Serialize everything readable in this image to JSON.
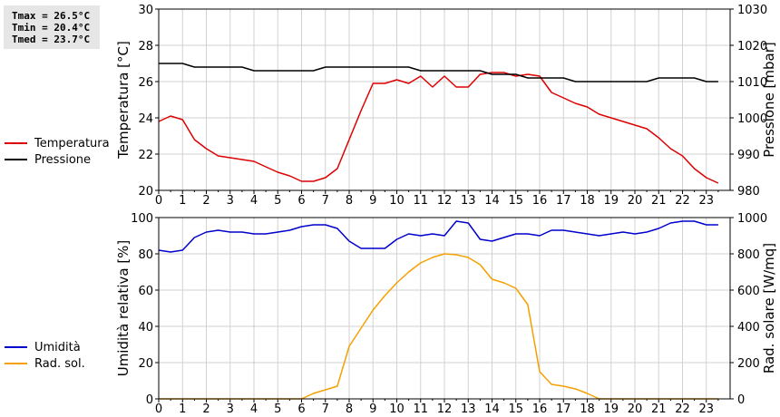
{
  "stats": {
    "tmax": "Tmax = 26.5°C",
    "tmin": "Tmin = 20.4°C",
    "tmed": "Tmed = 23.7°C"
  },
  "colors": {
    "temperature": "#dd0000",
    "pressure": "#000000",
    "humidity": "#0000cc",
    "radiation": "#f5a000",
    "grid": "#d2d2d2"
  },
  "chart_data": [
    {
      "type": "line",
      "x_ticks": [
        "0",
        "1",
        "2",
        "3",
        "4",
        "5",
        "6",
        "7",
        "8",
        "9",
        "10",
        "11",
        "12",
        "13",
        "14",
        "15",
        "16",
        "17",
        "18",
        "19",
        "20",
        "21",
        "22",
        "23"
      ],
      "xlim": [
        0,
        24
      ],
      "ylabel": "Temperatura [°C]",
      "ylim": [
        20,
        30
      ],
      "y_ticks": [
        "20",
        "22",
        "24",
        "26",
        "28",
        "30"
      ],
      "y2label": "Pressione [mbar]",
      "y2lim": [
        980,
        1030
      ],
      "y2_ticks": [
        "980",
        "990",
        "1000",
        "1010",
        "1020",
        "1030"
      ],
      "grid": true,
      "legend_placement": "left",
      "series": [
        {
          "name": "Temperatura",
          "axis": "left",
          "x": [
            0,
            0.5,
            1,
            1.5,
            2,
            2.5,
            3,
            3.5,
            4,
            4.5,
            5,
            5.5,
            6,
            6.5,
            7,
            7.5,
            8,
            8.5,
            9,
            9.5,
            10,
            10.5,
            11,
            11.5,
            12,
            12.5,
            13,
            13.5,
            14,
            14.5,
            15,
            15.5,
            16,
            16.5,
            17,
            17.5,
            18,
            18.5,
            19,
            19.5,
            20,
            20.5,
            21,
            21.5,
            22,
            22.5,
            23,
            23.5
          ],
          "y": [
            23.8,
            24.1,
            23.9,
            22.8,
            22.3,
            21.9,
            21.8,
            21.7,
            21.6,
            21.3,
            21.0,
            20.8,
            20.5,
            20.5,
            20.7,
            21.2,
            22.8,
            24.4,
            25.9,
            25.9,
            26.1,
            25.9,
            26.3,
            25.7,
            26.3,
            25.7,
            25.7,
            26.4,
            26.5,
            26.5,
            26.3,
            26.4,
            26.3,
            25.4,
            25.1,
            24.8,
            24.6,
            24.2,
            24.0,
            23.8,
            23.6,
            23.4,
            22.9,
            22.3,
            21.9,
            21.2,
            20.7,
            20.4
          ]
        },
        {
          "name": "Pressione",
          "axis": "right",
          "x": [
            0,
            1,
            1.5,
            3.5,
            4,
            6.5,
            7,
            10.5,
            11,
            13.5,
            14,
            15,
            15.5,
            17,
            17.5,
            20.5,
            21,
            22.5,
            23,
            23.5
          ],
          "y": [
            1015,
            1015,
            1014,
            1014,
            1013,
            1013,
            1014,
            1014,
            1013,
            1013,
            1012,
            1012,
            1011,
            1011,
            1010,
            1010,
            1011,
            1011,
            1010,
            1010
          ]
        }
      ]
    },
    {
      "type": "line",
      "x_ticks": [
        "0",
        "1",
        "2",
        "3",
        "4",
        "5",
        "6",
        "7",
        "8",
        "9",
        "10",
        "11",
        "12",
        "13",
        "14",
        "15",
        "16",
        "17",
        "18",
        "19",
        "20",
        "21",
        "22",
        "23"
      ],
      "xlim": [
        0,
        24
      ],
      "ylabel": "Umidità relativa [%]",
      "ylim": [
        0,
        100
      ],
      "y_ticks": [
        "0",
        "20",
        "40",
        "60",
        "80",
        "100"
      ],
      "y2label": "Rad. solare [W/mq]",
      "y2lim": [
        0,
        1000
      ],
      "y2_ticks": [
        "0",
        "200",
        "400",
        "600",
        "800",
        "1000"
      ],
      "grid": true,
      "legend_placement": "left",
      "series": [
        {
          "name": "Umidità",
          "axis": "left",
          "x": [
            0,
            0.5,
            1,
            1.5,
            2,
            2.5,
            3,
            3.5,
            4,
            4.5,
            5,
            5.5,
            6,
            6.5,
            7,
            7.5,
            8,
            8.5,
            9,
            9.5,
            10,
            10.5,
            11,
            11.5,
            12,
            12.5,
            13,
            13.5,
            14,
            14.5,
            15,
            15.5,
            16,
            16.5,
            17,
            17.5,
            18,
            18.5,
            19,
            19.5,
            20,
            20.5,
            21,
            21.5,
            22,
            22.5,
            23,
            23.5
          ],
          "y": [
            82,
            81,
            82,
            89,
            92,
            93,
            92,
            92,
            91,
            91,
            92,
            93,
            95,
            96,
            96,
            94,
            87,
            83,
            83,
            83,
            88,
            91,
            90,
            91,
            90,
            98,
            97,
            88,
            87,
            89,
            91,
            91,
            90,
            93,
            93,
            92,
            91,
            90,
            91,
            92,
            91,
            92,
            94,
            97,
            98,
            98,
            96,
            96
          ]
        },
        {
          "name": "Rad. sol.",
          "axis": "right",
          "x": [
            0,
            6,
            6.5,
            7,
            7.5,
            8,
            8.5,
            9,
            9.5,
            10,
            10.5,
            11,
            11.5,
            12,
            12.5,
            13,
            13.5,
            14,
            14.5,
            15,
            15.5,
            16,
            16.5,
            17,
            17.5,
            18,
            18.5,
            19,
            23.5
          ],
          "y": [
            0,
            0,
            30,
            50,
            70,
            290,
            390,
            490,
            570,
            640,
            700,
            750,
            780,
            800,
            795,
            780,
            740,
            660,
            640,
            610,
            520,
            150,
            80,
            70,
            55,
            30,
            0,
            0,
            0
          ]
        }
      ]
    }
  ]
}
